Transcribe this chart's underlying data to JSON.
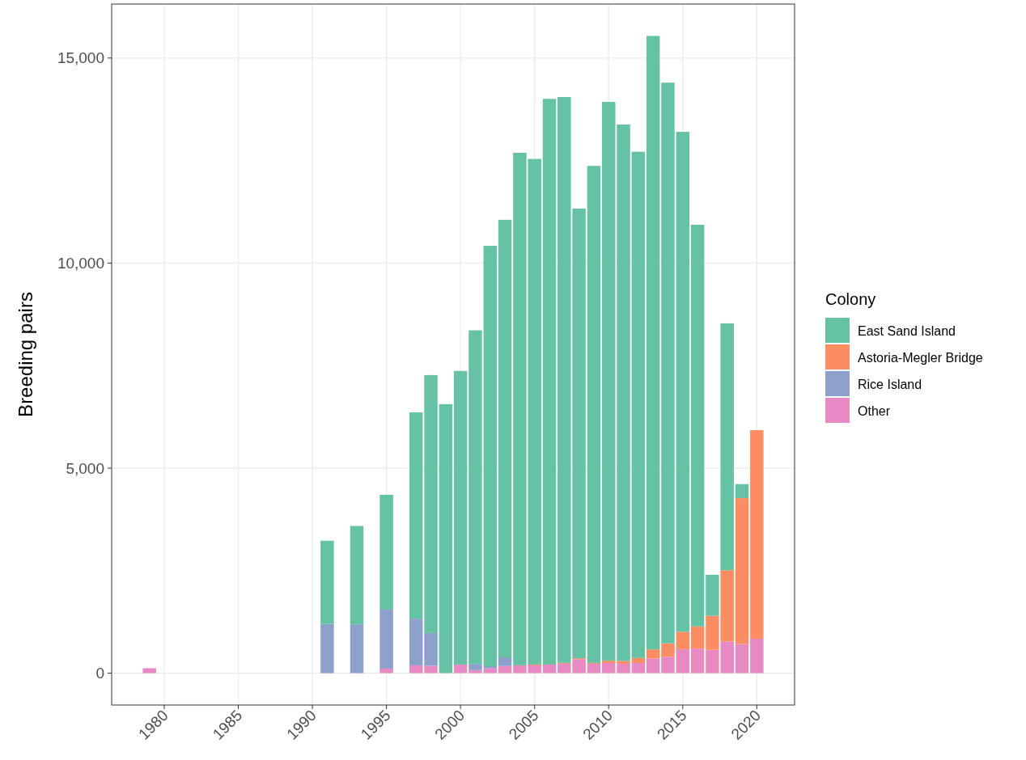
{
  "chart_data": {
    "type": "bar",
    "stacked": true,
    "ylabel": "Breeding pairs",
    "legend_title": "Colony",
    "legend": "right",
    "x": [
      1979,
      1991,
      1993,
      1995,
      1997,
      1998,
      1999,
      2000,
      2001,
      2002,
      2003,
      2004,
      2005,
      2006,
      2007,
      2008,
      2009,
      2010,
      2011,
      2012,
      2013,
      2014,
      2015,
      2016,
      2017,
      2018,
      2019,
      2020
    ],
    "series": [
      {
        "name": "Other",
        "color": "#e78ac3",
        "values": [
          120,
          0,
          0,
          110,
          190,
          180,
          0,
          210,
          75,
          120,
          175,
          190,
          190,
          210,
          230,
          340,
          230,
          250,
          230,
          250,
          360,
          400,
          580,
          600,
          570,
          770,
          710,
          840
        ]
      },
      {
        "name": "Rice Island",
        "color": "#8da0cb",
        "values": [
          0,
          1200,
          1190,
          1440,
          1140,
          800,
          0,
          0,
          150,
          50,
          210,
          0,
          0,
          0,
          0,
          0,
          0,
          0,
          0,
          0,
          0,
          0,
          0,
          0,
          0,
          0,
          0,
          0
        ]
      },
      {
        "name": "Astoria-Megler Bridge",
        "color": "#fc8d62",
        "values": [
          0,
          0,
          0,
          0,
          0,
          0,
          0,
          0,
          0,
          0,
          0,
          0,
          20,
          0,
          20,
          25,
          20,
          55,
          70,
          120,
          220,
          330,
          430,
          540,
          830,
          1740,
          3560,
          5085
        ]
      },
      {
        "name": "East Sand Island",
        "color": "#66c2a5",
        "values": [
          0,
          2030,
          2400,
          2800,
          5030,
          6290,
          6560,
          7160,
          8135,
          10250,
          10670,
          12500,
          12330,
          13795,
          13800,
          10965,
          12120,
          13625,
          13080,
          12345,
          14960,
          13670,
          12190,
          9795,
          1000,
          6020,
          340,
          0
        ]
      }
    ],
    "xlim": [
      1976.45,
      2022.55
    ],
    "xticks": [
      1980,
      1985,
      1990,
      1995,
      2000,
      2005,
      2010,
      2015,
      2020
    ],
    "ylim": [
      -777,
      16317
    ],
    "yticks": [
      0,
      {
        "value": 5000,
        "label": "5,000"
      },
      {
        "value": 10000,
        "label": "10,000"
      },
      {
        "value": 15000,
        "label": "15,000"
      }
    ],
    "grid": true
  }
}
